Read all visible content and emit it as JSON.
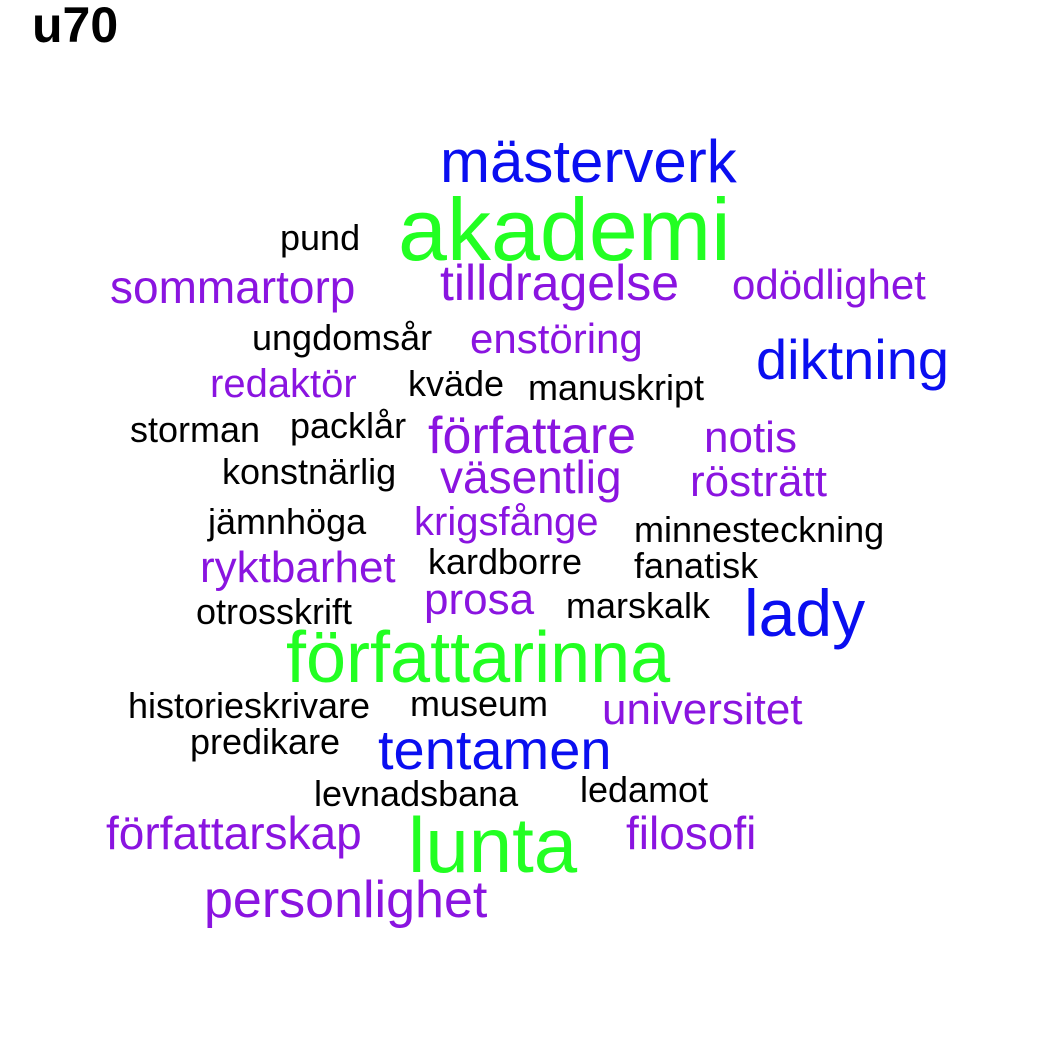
{
  "title": "u70",
  "colors": {
    "green": "#22ff22",
    "blue": "#0a0ef0",
    "purple": "#8a14e0",
    "black": "#000000"
  },
  "words": [
    {
      "text": "mästerverk",
      "color": "blue"
    },
    {
      "text": "akademi",
      "color": "green"
    },
    {
      "text": "pund",
      "color": "black"
    },
    {
      "text": "sommartorp",
      "color": "purple"
    },
    {
      "text": "tilldragelse",
      "color": "purple"
    },
    {
      "text": "odödlighet",
      "color": "purple"
    },
    {
      "text": "ungdomsår",
      "color": "black"
    },
    {
      "text": "enstöring",
      "color": "purple"
    },
    {
      "text": "diktning",
      "color": "blue"
    },
    {
      "text": "redaktör",
      "color": "purple"
    },
    {
      "text": "kväde",
      "color": "black"
    },
    {
      "text": "manuskript",
      "color": "black"
    },
    {
      "text": "storman",
      "color": "black"
    },
    {
      "text": "packlår",
      "color": "black"
    },
    {
      "text": "författare",
      "color": "purple"
    },
    {
      "text": "notis",
      "color": "purple"
    },
    {
      "text": "konstnärlig",
      "color": "black"
    },
    {
      "text": "väsentlig",
      "color": "purple"
    },
    {
      "text": "rösträtt",
      "color": "purple"
    },
    {
      "text": "jämnhöga",
      "color": "black"
    },
    {
      "text": "krigsfånge",
      "color": "purple"
    },
    {
      "text": "minnesteckning",
      "color": "black"
    },
    {
      "text": "ryktbarhet",
      "color": "purple"
    },
    {
      "text": "kardborre",
      "color": "black"
    },
    {
      "text": "fanatisk",
      "color": "black"
    },
    {
      "text": "prosa",
      "color": "purple"
    },
    {
      "text": "marskalk",
      "color": "black"
    },
    {
      "text": "lady",
      "color": "blue"
    },
    {
      "text": "otrosskrift",
      "color": "black"
    },
    {
      "text": "författarinna",
      "color": "green"
    },
    {
      "text": "historieskrivare",
      "color": "black"
    },
    {
      "text": "museum",
      "color": "black"
    },
    {
      "text": "universitet",
      "color": "purple"
    },
    {
      "text": "predikare",
      "color": "black"
    },
    {
      "text": "tentamen",
      "color": "blue"
    },
    {
      "text": "levnadsbana",
      "color": "black"
    },
    {
      "text": "ledamot",
      "color": "black"
    },
    {
      "text": "författarskap",
      "color": "purple"
    },
    {
      "text": "lunta",
      "color": "green"
    },
    {
      "text": "filosofi",
      "color": "purple"
    },
    {
      "text": "personlighet",
      "color": "purple"
    }
  ]
}
